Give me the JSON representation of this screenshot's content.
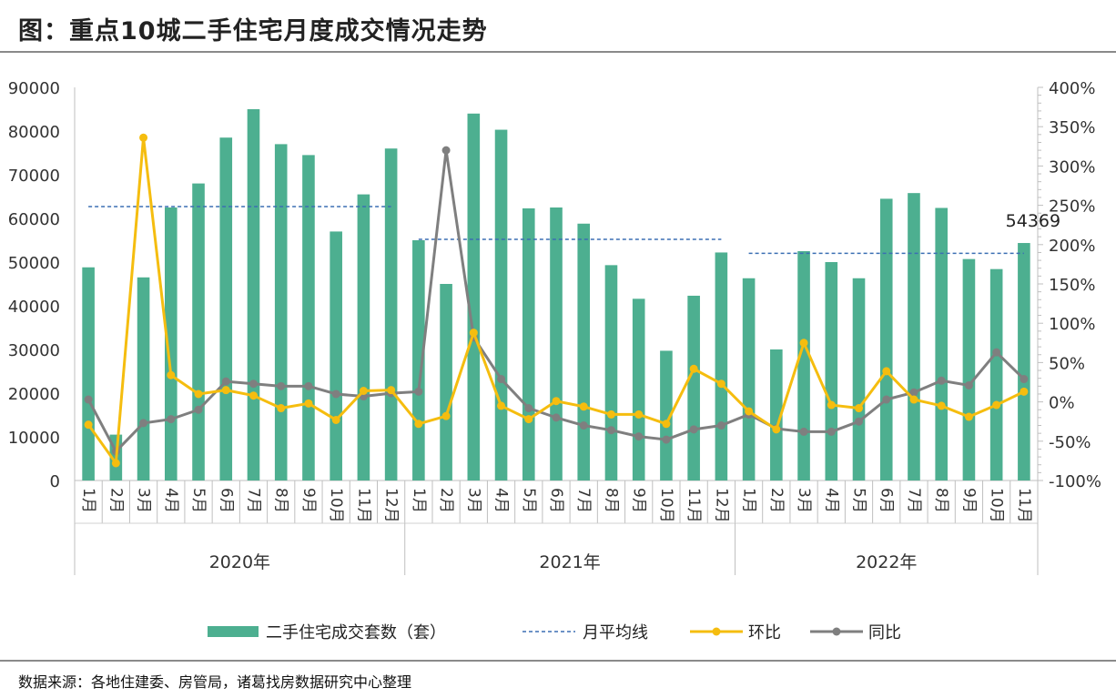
{
  "title": "图：重点10城二手住宅月度成交情况走势",
  "source": "数据来源：各地住建委、房管局，诸葛找房数据研究中心整理",
  "colors": {
    "bar": "#4daf90",
    "avg": "#3b6fb3",
    "mom": "#f5bd0f",
    "yoy": "#7f7f7f"
  },
  "chart_data": {
    "type": "bar",
    "categories": [
      "1月",
      "2月",
      "3月",
      "4月",
      "5月",
      "6月",
      "7月",
      "8月",
      "9月",
      "10月",
      "11月",
      "12月",
      "1月",
      "2月",
      "3月",
      "4月",
      "5月",
      "6月",
      "7月",
      "8月",
      "9月",
      "10月",
      "11月",
      "12月",
      "1月",
      "2月",
      "3月",
      "4月",
      "5月",
      "6月",
      "7月",
      "8月",
      "9月",
      "10月",
      "11月"
    ],
    "groups": [
      {
        "label": "2020年",
        "count": 12
      },
      {
        "label": "2021年",
        "count": 12
      },
      {
        "label": "2022年",
        "count": 11
      }
    ],
    "series": [
      {
        "name": "二手住宅成交套数（套）",
        "type": "bar",
        "axis": "left",
        "values": [
          48800,
          10500,
          46500,
          62500,
          68000,
          78500,
          85000,
          77000,
          74500,
          57000,
          65500,
          76000,
          55000,
          45000,
          84000,
          80300,
          62300,
          62500,
          58800,
          49300,
          41600,
          29700,
          42300,
          52200,
          46300,
          30000,
          52500,
          50000,
          46300,
          64500,
          65800,
          62400,
          50700,
          48400,
          54369
        ]
      },
      {
        "name": "月平均线",
        "type": "line-dashed",
        "axis": "left",
        "segments": [
          {
            "from": 0,
            "to": 11,
            "value": 62700
          },
          {
            "from": 12,
            "to": 23,
            "value": 55200
          },
          {
            "from": 24,
            "to": 34,
            "value": 52000
          }
        ]
      },
      {
        "name": "环比",
        "type": "line",
        "axis": "right",
        "values": [
          -29,
          -78,
          336,
          34,
          10,
          15,
          8,
          -8,
          -2,
          -23,
          14,
          15,
          -28,
          -18,
          88,
          -5,
          -22,
          1,
          -6,
          -16,
          -16,
          -28,
          42,
          23,
          -12,
          -35,
          75,
          -4,
          -8,
          39,
          3,
          -5,
          -19,
          -4,
          13
        ]
      },
      {
        "name": "同比",
        "type": "line",
        "axis": "right",
        "values": [
          3,
          -63,
          -27,
          -22,
          -10,
          26,
          23,
          20,
          20,
          10,
          7,
          11,
          13,
          320,
          82,
          29,
          -8,
          -20,
          -30,
          -36,
          -44,
          -48,
          -35,
          -30,
          -16,
          -34,
          -38,
          -38,
          -25,
          3,
          12,
          27,
          21,
          63,
          29
        ]
      }
    ],
    "left_axis": {
      "min": 0,
      "max": 90000,
      "ticks": [
        "0",
        "10000",
        "20000",
        "30000",
        "40000",
        "50000",
        "60000",
        "70000",
        "80000",
        "90000"
      ]
    },
    "right_axis": {
      "min": -100,
      "max": 400,
      "ticks": [
        "-100%",
        "-50%",
        "0%",
        "50%",
        "100%",
        "150%",
        "200%",
        "250%",
        "300%",
        "350%",
        "400%"
      ]
    },
    "data_labels": [
      {
        "index": 34,
        "text": "54369"
      }
    ],
    "legend": {
      "position": "bottom"
    }
  }
}
